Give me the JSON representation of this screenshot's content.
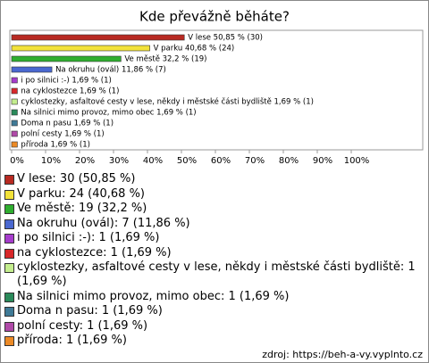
{
  "chart_data": {
    "type": "bar",
    "orientation": "horizontal",
    "title": "Kde převážně běháte?",
    "categories": [
      "V lese",
      "V parku",
      "Ve městě",
      "Na okruhu (ovál)",
      "i po silnici :-)",
      "na cyklostezce",
      "cyklostezky, asfaltové cesty v lese, někdy i městské části bydliště",
      "Na silnici mimo provoz, mimo obec",
      "Doma n pasu",
      "polní cesty",
      "příroda"
    ],
    "values": [
      50.85,
      40.68,
      32.2,
      11.86,
      1.69,
      1.69,
      1.69,
      1.69,
      1.69,
      1.69,
      1.69
    ],
    "counts": [
      30,
      24,
      19,
      7,
      1,
      1,
      1,
      1,
      1,
      1,
      1
    ],
    "value_labels": [
      "V lese 50,85 % (30)",
      "V parku 40,68 % (24)",
      "Ve městě 32,2 % (19)",
      "Na okruhu (ovál) 11,86 % (7)",
      "i po silnici :-) 1,69 % (1)",
      "na cyklostezce 1,69 % (1)",
      "cyklostezky, asfaltové cesty v lese, někdy i městské části bydliště 1,69 % (1)",
      "Na silnici mimo provoz, mimo obec 1,69 % (1)",
      "Doma n pasu 1,69 % (1)",
      "polní cesty 1,69 % (1)",
      "příroda 1,69 % (1)"
    ],
    "legend_labels": [
      "V lese: 30 (50,85 %)",
      "V parku: 24 (40,68 %)",
      "Ve městě: 19 (32,2 %)",
      "Na okruhu (ovál): 7 (11,86 %)",
      "i po silnici :-): 1 (1,69 %)",
      "na cyklostezce: 1 (1,69 %)",
      "cyklostezky, asfaltové cesty v lese, někdy i městské části bydliště: 1 (1,69 %)",
      "Na silnici mimo provoz, mimo obec: 1 (1,69 %)",
      "Doma n pasu: 1 (1,69 %)",
      "polní cesty: 1 (1,69 %)",
      "příroda: 1 (1,69 %)"
    ],
    "colors": [
      "#b82a22",
      "#f2e23a",
      "#2fae2f",
      "#4a68d0",
      "#a63ccc",
      "#d8282a",
      "#c4ee8e",
      "#2a8a5a",
      "#3f7a96",
      "#b04aa8",
      "#ec8a26"
    ],
    "xlim": [
      0,
      100
    ],
    "xticks": [
      {
        "value": 0,
        "label": "0%"
      },
      {
        "value": 10,
        "label": "10%"
      },
      {
        "value": 20,
        "label": "20%"
      },
      {
        "value": 30,
        "label": "30%"
      },
      {
        "value": 40,
        "label": "40%"
      },
      {
        "value": 50,
        "label": "50%"
      },
      {
        "value": 60,
        "label": "60%"
      },
      {
        "value": 70,
        "label": "70%"
      },
      {
        "value": 80,
        "label": "80%"
      },
      {
        "value": 90,
        "label": "90%"
      },
      {
        "value": 100,
        "label": "100%"
      }
    ],
    "source": "zdroj: https://beh-a-vy.vyplnto.cz"
  }
}
